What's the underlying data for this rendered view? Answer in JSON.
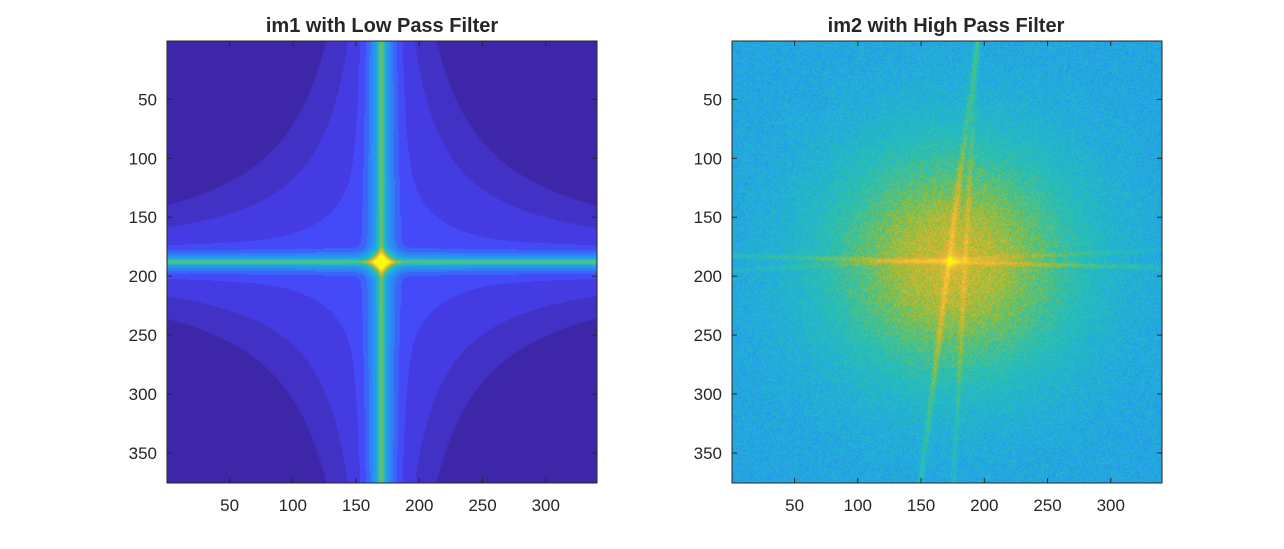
{
  "colormap": [
    "#3e26a8",
    "#4743f8",
    "#2b8ef6",
    "#1fb4d5",
    "#2fc2a6",
    "#9ebd2f",
    "#f5b33a",
    "#f8d52a",
    "#f9fb0e"
  ],
  "chart_data": [
    {
      "type": "heatmap",
      "title": "im1 with Low Pass Filter",
      "xlim": [
        0.5,
        340.5
      ],
      "ylim": [
        0.5,
        375.5
      ],
      "y_reversed": true,
      "xticks": [
        50,
        100,
        150,
        200,
        250,
        300
      ],
      "yticks": [
        50,
        100,
        150,
        200,
        250,
        300,
        350
      ],
      "xticklabels": [
        "50",
        "100",
        "150",
        "200",
        "250",
        "300"
      ],
      "yticklabels": [
        "50",
        "100",
        "150",
        "200",
        "250",
        "300",
        "350"
      ],
      "peak": [
        170,
        188
      ],
      "pattern": "cross"
    },
    {
      "type": "heatmap",
      "title": "im2 with High Pass Filter",
      "xlim": [
        0.5,
        340.5
      ],
      "ylim": [
        0.5,
        375.5
      ],
      "y_reversed": true,
      "xticks": [
        50,
        100,
        150,
        200,
        250,
        300
      ],
      "yticks": [
        50,
        100,
        150,
        200,
        250,
        300,
        350
      ],
      "xticklabels": [
        "50",
        "100",
        "150",
        "200",
        "250",
        "300"
      ],
      "yticklabels": [
        "50",
        "100",
        "150",
        "200",
        "250",
        "300",
        "350"
      ],
      "peak": [
        175,
        188
      ],
      "pattern": "spectrum"
    }
  ]
}
